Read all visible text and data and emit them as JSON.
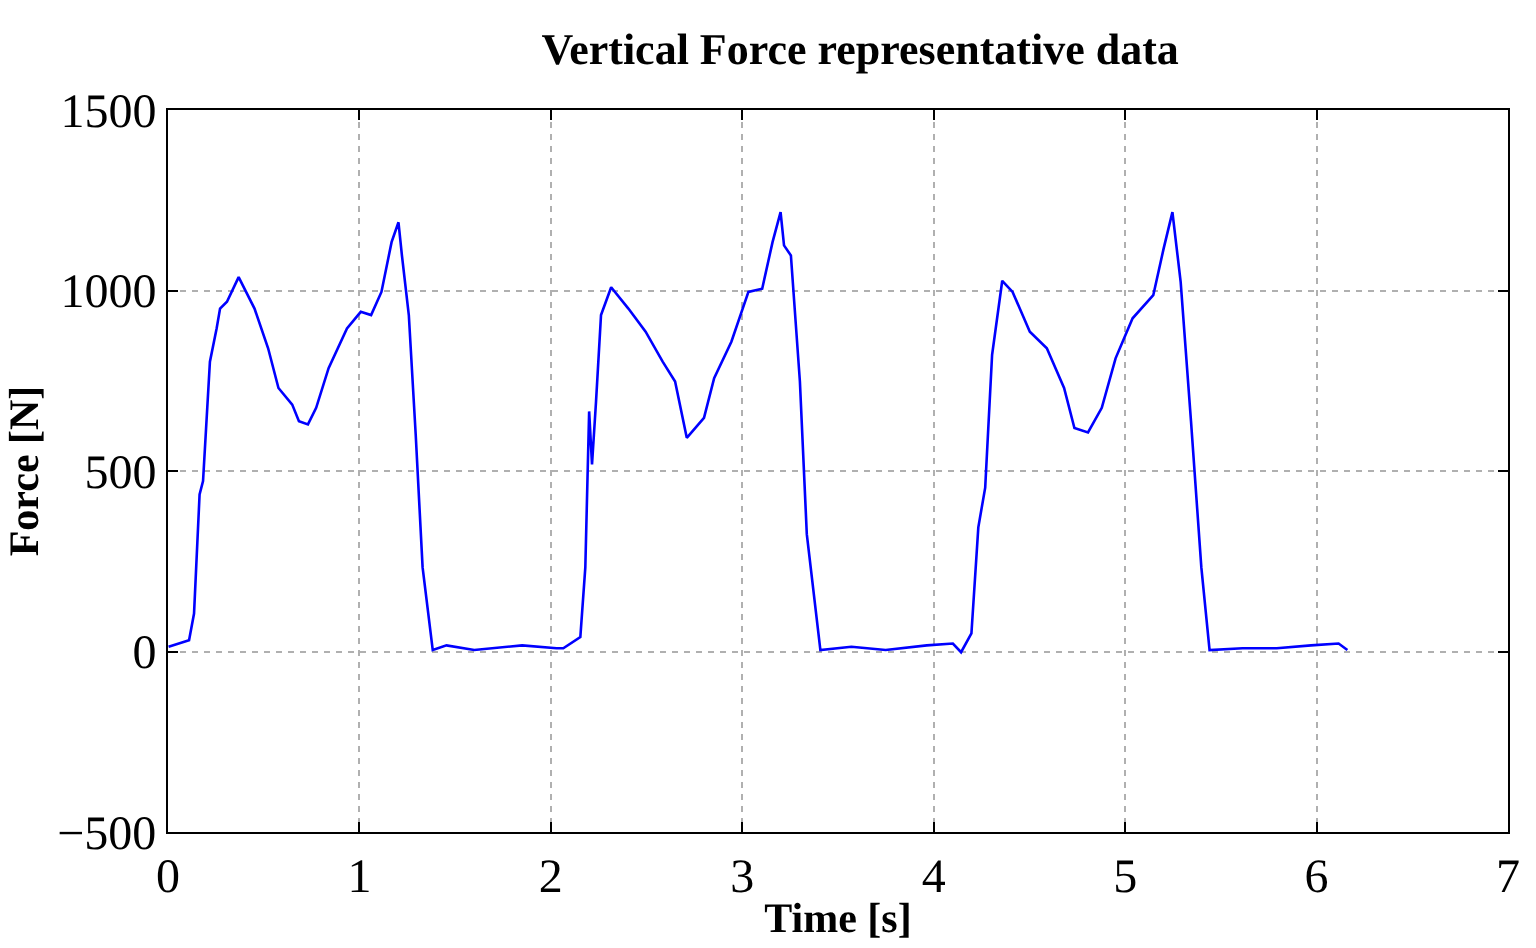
{
  "chart_data": {
    "type": "line",
    "title": "Vertical Force representative data",
    "xlabel": "Time [s]",
    "ylabel": "Force [N]",
    "xlim": [
      0,
      7
    ],
    "xticks": [
      0,
      1,
      2,
      3,
      4,
      5,
      6,
      7
    ],
    "ylim": [
      -500,
      1500
    ],
    "yticks": [
      {
        "value": -500,
        "label": "−500"
      },
      0,
      500,
      1000,
      1500
    ],
    "grid": true,
    "line_style": "solid",
    "marker": "none",
    "series": [
      {
        "color": "#0000ff",
        "x": [
          0.003,
          0.11,
          0.136,
          0.165,
          0.183,
          0.219,
          0.254,
          0.272,
          0.308,
          0.369,
          0.452,
          0.523,
          0.577,
          0.649,
          0.684,
          0.731,
          0.774,
          0.839,
          0.935,
          1.007,
          1.061,
          1.115,
          1.168,
          1.204,
          1.222,
          1.258,
          1.294,
          1.33,
          1.383,
          1.455,
          1.6,
          1.85,
          2.03,
          2.065,
          2.154,
          2.18,
          2.2,
          2.215,
          2.236,
          2.262,
          2.315,
          2.405,
          2.495,
          2.584,
          2.649,
          2.71,
          2.8,
          2.853,
          2.943,
          3.032,
          3.104,
          3.158,
          3.2,
          3.218,
          3.254,
          3.301,
          3.337,
          3.408,
          3.57,
          3.749,
          3.964,
          4.1,
          4.143,
          4.197,
          4.233,
          4.269,
          4.305,
          4.358,
          4.412,
          4.502,
          4.591,
          4.681,
          4.735,
          4.806,
          4.878,
          4.95,
          5.039,
          5.147,
          5.201,
          5.247,
          5.29,
          5.344,
          5.398,
          5.441,
          5.613,
          5.792,
          5.971,
          6.115,
          6.161
        ],
        "values": [
          13,
          31,
          105,
          435,
          472,
          803,
          895,
          950,
          969,
          1037,
          950,
          840,
          730,
          684,
          638,
          629,
          675,
          785,
          895,
          941,
          932,
          996,
          1134,
          1189,
          1097,
          932,
          601,
          233,
          4,
          17,
          4,
          17,
          9,
          9,
          40,
          233,
          665,
          518,
          693,
          932,
          1009,
          950,
          886,
          803,
          748,
          592,
          647,
          757,
          858,
          996,
          1005,
          1134,
          1217,
          1125,
          1097,
          748,
          325,
          4,
          13,
          4,
          17,
          22,
          -2,
          50,
          344,
          454,
          822,
          1027,
          996,
          886,
          840,
          730,
          619,
          607,
          675,
          812,
          923,
          987,
          1116,
          1217,
          1024,
          638,
          233,
          4,
          9,
          9,
          17,
          22,
          4
        ]
      }
    ]
  }
}
